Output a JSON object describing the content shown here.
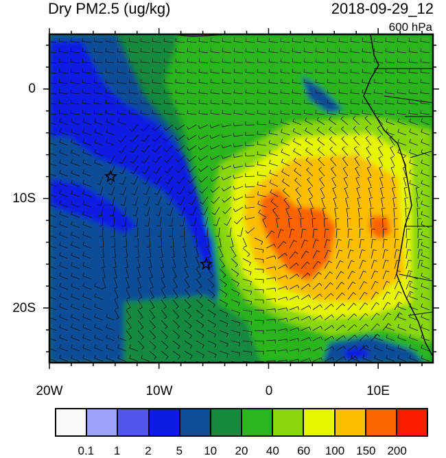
{
  "header": {
    "title": "Dry PM2.5 (ug/kg)",
    "datetime": "2018-09-29_12",
    "level": "600 hPa"
  },
  "map": {
    "lon_range": [
      -20,
      15
    ],
    "lat_range": [
      -25,
      5
    ],
    "x_tick_labels": [
      "20W",
      "10W",
      "0",
      "10E"
    ],
    "y_tick_labels": [
      "0",
      "10S",
      "20S"
    ],
    "markers": [
      {
        "name": "star",
        "lon": -14.4,
        "lat": -8.0
      },
      {
        "name": "star",
        "lon": -5.7,
        "lat": -16.0
      }
    ],
    "ocean_color": "#1b8f3c",
    "coastline_color": "#000000"
  },
  "colorbar": {
    "labels": [
      "0.1",
      "1",
      "2",
      "5",
      "10",
      "20",
      "40",
      "60",
      "100",
      "150",
      "200"
    ],
    "colors": [
      "#fafafa",
      "#9da4f7",
      "#5055ee",
      "#0b1ce0",
      "#0d4e98",
      "#16893f",
      "#2bb51d",
      "#8ad70c",
      "#e6f600",
      "#fbbf00",
      "#fb6200",
      "#fb1c00"
    ]
  }
}
